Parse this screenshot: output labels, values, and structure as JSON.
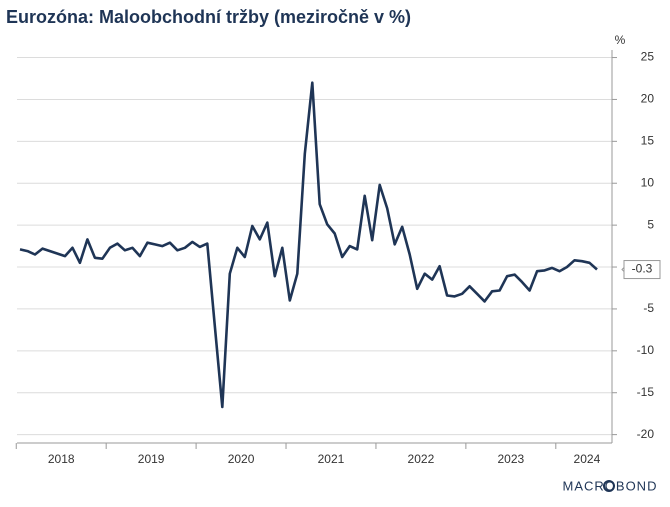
{
  "chart_data": {
    "type": "line",
    "title": "Eurozóna: Maloobchodní tržby (meziročně v %)",
    "y_unit": "%",
    "source": "MACROBOND",
    "x": [
      "2018-01",
      "2018-02",
      "2018-03",
      "2018-04",
      "2018-05",
      "2018-06",
      "2018-07",
      "2018-08",
      "2018-09",
      "2018-10",
      "2018-11",
      "2018-12",
      "2019-01",
      "2019-02",
      "2019-03",
      "2019-04",
      "2019-05",
      "2019-06",
      "2019-07",
      "2019-08",
      "2019-09",
      "2019-10",
      "2019-11",
      "2019-12",
      "2020-01",
      "2020-02",
      "2020-03",
      "2020-04",
      "2020-05",
      "2020-06",
      "2020-07",
      "2020-08",
      "2020-09",
      "2020-10",
      "2020-11",
      "2020-12",
      "2021-01",
      "2021-02",
      "2021-03",
      "2021-04",
      "2021-05",
      "2021-06",
      "2021-07",
      "2021-08",
      "2021-09",
      "2021-10",
      "2021-11",
      "2021-12",
      "2022-01",
      "2022-02",
      "2022-03",
      "2022-04",
      "2022-05",
      "2022-06",
      "2022-07",
      "2022-08",
      "2022-09",
      "2022-10",
      "2022-11",
      "2022-12",
      "2023-01",
      "2023-02",
      "2023-03",
      "2023-04",
      "2023-05",
      "2023-06",
      "2023-07",
      "2023-08",
      "2023-09",
      "2023-10",
      "2023-11",
      "2023-12",
      "2024-01",
      "2024-02",
      "2024-03",
      "2024-04",
      "2024-05",
      "2024-06"
    ],
    "series": [
      {
        "color": "#1f3556",
        "values": [
          2.1,
          1.9,
          1.5,
          2.2,
          1.9,
          1.6,
          1.3,
          2.3,
          0.5,
          3.3,
          1.1,
          1.0,
          2.3,
          2.8,
          2.0,
          2.3,
          1.3,
          2.9,
          2.7,
          2.5,
          2.9,
          2.0,
          2.3,
          3.0,
          2.4,
          2.8,
          -7.0,
          -16.7,
          -0.8,
          2.3,
          1.2,
          4.9,
          3.3,
          5.3,
          -1.1,
          2.3,
          -4.0,
          -0.8,
          13.5,
          22.0,
          7.5,
          5.1,
          4.0,
          1.2,
          2.5,
          2.1,
          8.5,
          3.2,
          9.8,
          7.0,
          2.7,
          4.8,
          1.5,
          -2.6,
          -0.8,
          -1.5,
          0.1,
          -3.4,
          -3.5,
          -3.2,
          -2.3,
          -3.2,
          -4.1,
          -2.9,
          -2.8,
          -1.1,
          -0.9,
          -1.8,
          -2.8,
          -0.5,
          -0.4,
          -0.1,
          -0.5,
          0.0,
          0.8,
          0.7,
          0.5,
          -0.3
        ]
      }
    ],
    "xlim": [
      "2018-01",
      "2024-08"
    ],
    "xticks": [
      "2018",
      "2019",
      "2020",
      "2021",
      "2022",
      "2023",
      "2024"
    ],
    "ylim": [
      -21,
      25.9
    ],
    "yticks": [
      25,
      20,
      15,
      10,
      5,
      0,
      -5,
      -10,
      -15,
      -20
    ],
    "grid": true
  }
}
